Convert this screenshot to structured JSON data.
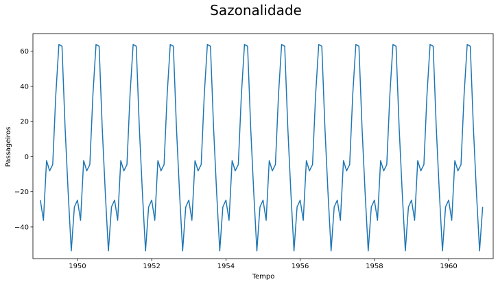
{
  "chart_data": {
    "type": "line",
    "title": "Sazonalidade",
    "xlabel": "Tempo",
    "ylabel": "Passageiros",
    "xlim": [
      1948.8,
      1961.2
    ],
    "ylim": [
      -58,
      70
    ],
    "xticks": [
      1950,
      1952,
      1954,
      1956,
      1958,
      1960
    ],
    "yticks": [
      -40,
      -20,
      0,
      20,
      40,
      60
    ],
    "grid": false,
    "line_color": "#1f77b4",
    "x_start": 1949.0,
    "x_step": 0.08333,
    "series": [
      {
        "values": [
          -24.75,
          -36.19,
          -2.24,
          -8.04,
          -4.51,
          35.4,
          63.83,
          62.82,
          16.52,
          -20.64,
          -53.59,
          -28.62,
          -24.75,
          -36.19,
          -2.24,
          -8.04,
          -4.51,
          35.4,
          63.83,
          62.82,
          16.52,
          -20.64,
          -53.59,
          -28.62,
          -24.75,
          -36.19,
          -2.24,
          -8.04,
          -4.51,
          35.4,
          63.83,
          62.82,
          16.52,
          -20.64,
          -53.59,
          -28.62,
          -24.75,
          -36.19,
          -2.24,
          -8.04,
          -4.51,
          35.4,
          63.83,
          62.82,
          16.52,
          -20.64,
          -53.59,
          -28.62,
          -24.75,
          -36.19,
          -2.24,
          -8.04,
          -4.51,
          35.4,
          63.83,
          62.82,
          16.52,
          -20.64,
          -53.59,
          -28.62,
          -24.75,
          -36.19,
          -2.24,
          -8.04,
          -4.51,
          35.4,
          63.83,
          62.82,
          16.52,
          -20.64,
          -53.59,
          -28.62,
          -24.75,
          -36.19,
          -2.24,
          -8.04,
          -4.51,
          35.4,
          63.83,
          62.82,
          16.52,
          -20.64,
          -53.59,
          -28.62,
          -24.75,
          -36.19,
          -2.24,
          -8.04,
          -4.51,
          35.4,
          63.83,
          62.82,
          16.52,
          -20.64,
          -53.59,
          -28.62,
          -24.75,
          -36.19,
          -2.24,
          -8.04,
          -4.51,
          35.4,
          63.83,
          62.82,
          16.52,
          -20.64,
          -53.59,
          -28.62,
          -24.75,
          -36.19,
          -2.24,
          -8.04,
          -4.51,
          35.4,
          63.83,
          62.82,
          16.52,
          -20.64,
          -53.59,
          -28.62,
          -24.75,
          -36.19,
          -2.24,
          -8.04,
          -4.51,
          35.4,
          63.83,
          62.82,
          16.52,
          -20.64,
          -53.59,
          -28.62,
          -24.75,
          -36.19,
          -2.24,
          -8.04,
          -4.51,
          35.4,
          63.83,
          62.82,
          16.52,
          -20.64,
          -53.59,
          -28.62
        ]
      }
    ]
  }
}
